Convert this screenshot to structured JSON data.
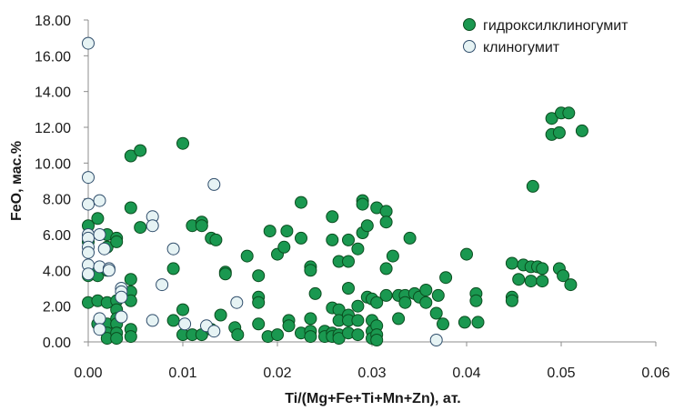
{
  "chart_data": {
    "type": "scatter",
    "xlabel": "Ti/(Mg+Fe+Ti+Mn+Zn), ат.",
    "ylabel": "FeO, мас.%",
    "xlim": [
      0,
      0.06
    ],
    "ylim": [
      0,
      18
    ],
    "x_ticks": [
      "0.00",
      "0.01",
      "0.02",
      "0.03",
      "0.04",
      "0.05",
      "0.06"
    ],
    "y_ticks": [
      "0.00",
      "2.00",
      "4.00",
      "6.00",
      "8.00",
      "10.00",
      "12.00",
      "14.00",
      "16.00",
      "18.00"
    ],
    "grid": false,
    "legend_position": "top-right",
    "series": [
      {
        "name": "гидроксилклиногумит",
        "color": "#1a9850",
        "points": [
          [
            0.0,
            6.5
          ],
          [
            0.0,
            5.6
          ],
          [
            0.0,
            3.7
          ],
          [
            0.0,
            2.2
          ],
          [
            0.001,
            6.9
          ],
          [
            0.001,
            4.0
          ],
          [
            0.001,
            3.7
          ],
          [
            0.001,
            2.3
          ],
          [
            0.001,
            1.0
          ],
          [
            0.002,
            6.0
          ],
          [
            0.002,
            5.3
          ],
          [
            0.002,
            4.0
          ],
          [
            0.002,
            2.2
          ],
          [
            0.002,
            1.0
          ],
          [
            0.002,
            0.5
          ],
          [
            0.002,
            0.2
          ],
          [
            0.003,
            5.8
          ],
          [
            0.003,
            5.6
          ],
          [
            0.003,
            2.3
          ],
          [
            0.003,
            1.8
          ],
          [
            0.003,
            1.3
          ],
          [
            0.003,
            1.0
          ],
          [
            0.003,
            0.5
          ],
          [
            0.003,
            0.2
          ],
          [
            0.0045,
            10.4
          ],
          [
            0.0045,
            7.5
          ],
          [
            0.0045,
            3.5
          ],
          [
            0.0045,
            2.8
          ],
          [
            0.0045,
            2.3
          ],
          [
            0.0045,
            0.7
          ],
          [
            0.0045,
            0.3
          ],
          [
            0.0055,
            10.7
          ],
          [
            0.0055,
            6.4
          ],
          [
            0.009,
            4.1
          ],
          [
            0.009,
            1.2
          ],
          [
            0.01,
            11.1
          ],
          [
            0.01,
            1.8
          ],
          [
            0.01,
            0.4
          ],
          [
            0.011,
            6.5
          ],
          [
            0.011,
            0.4
          ],
          [
            0.012,
            6.7
          ],
          [
            0.012,
            6.5
          ],
          [
            0.012,
            0.4
          ],
          [
            0.013,
            5.8
          ],
          [
            0.013,
            0.7
          ],
          [
            0.0135,
            5.7
          ],
          [
            0.014,
            1.5
          ],
          [
            0.0145,
            3.9
          ],
          [
            0.0145,
            3.8
          ],
          [
            0.0155,
            0.8
          ],
          [
            0.0158,
            0.4
          ],
          [
            0.0168,
            4.8
          ],
          [
            0.018,
            3.7
          ],
          [
            0.018,
            2.5
          ],
          [
            0.018,
            2.2
          ],
          [
            0.018,
            1.0
          ],
          [
            0.019,
            0.3
          ],
          [
            0.0192,
            6.2
          ],
          [
            0.02,
            4.9
          ],
          [
            0.02,
            0.4
          ],
          [
            0.0207,
            5.3
          ],
          [
            0.021,
            6.2
          ],
          [
            0.0212,
            1.2
          ],
          [
            0.0212,
            0.9
          ],
          [
            0.0225,
            7.8
          ],
          [
            0.0225,
            5.8
          ],
          [
            0.0225,
            0.5
          ],
          [
            0.0235,
            4.2
          ],
          [
            0.0235,
            4.0
          ],
          [
            0.0235,
            1.3
          ],
          [
            0.0235,
            0.6
          ],
          [
            0.0235,
            0.3
          ],
          [
            0.024,
            2.7
          ],
          [
            0.025,
            0.6
          ],
          [
            0.025,
            0.3
          ],
          [
            0.0258,
            7.0
          ],
          [
            0.0258,
            5.7
          ],
          [
            0.0258,
            1.9
          ],
          [
            0.0258,
            0.5
          ],
          [
            0.0258,
            0.3
          ],
          [
            0.0265,
            4.5
          ],
          [
            0.0265,
            1.8
          ],
          [
            0.0265,
            1.2
          ],
          [
            0.0265,
            0.4
          ],
          [
            0.0265,
            0.2
          ],
          [
            0.0275,
            5.7
          ],
          [
            0.0275,
            4.5
          ],
          [
            0.0275,
            3.0
          ],
          [
            0.0275,
            1.5
          ],
          [
            0.0275,
            1.2
          ],
          [
            0.0275,
            0.5
          ],
          [
            0.0285,
            5.2
          ],
          [
            0.0285,
            2.0
          ],
          [
            0.0285,
            1.2
          ],
          [
            0.0285,
            0.4
          ],
          [
            0.029,
            7.9
          ],
          [
            0.029,
            7.7
          ],
          [
            0.029,
            6.1
          ],
          [
            0.0295,
            6.5
          ],
          [
            0.0295,
            2.5
          ],
          [
            0.03,
            2.4
          ],
          [
            0.03,
            1.2
          ],
          [
            0.03,
            0.6
          ],
          [
            0.03,
            0.2
          ],
          [
            0.0305,
            7.5
          ],
          [
            0.0305,
            2.2
          ],
          [
            0.0305,
            0.9
          ],
          [
            0.0305,
            0.4
          ],
          [
            0.0305,
            0.1
          ],
          [
            0.0315,
            7.3
          ],
          [
            0.0315,
            6.7
          ],
          [
            0.0315,
            4.1
          ],
          [
            0.0315,
            2.6
          ],
          [
            0.0322,
            4.8
          ],
          [
            0.0328,
            2.6
          ],
          [
            0.0328,
            1.3
          ],
          [
            0.0335,
            2.6
          ],
          [
            0.0335,
            2.2
          ],
          [
            0.034,
            5.8
          ],
          [
            0.0345,
            2.7
          ],
          [
            0.035,
            2.5
          ],
          [
            0.0357,
            2.9
          ],
          [
            0.0357,
            2.2
          ],
          [
            0.0368,
            1.6
          ],
          [
            0.037,
            2.6
          ],
          [
            0.0375,
            1.0
          ],
          [
            0.0378,
            3.6
          ],
          [
            0.0398,
            1.1
          ],
          [
            0.04,
            4.9
          ],
          [
            0.041,
            2.7
          ],
          [
            0.041,
            2.3
          ],
          [
            0.0412,
            1.1
          ],
          [
            0.0448,
            4.4
          ],
          [
            0.0448,
            2.5
          ],
          [
            0.0448,
            2.3
          ],
          [
            0.0455,
            3.5
          ],
          [
            0.046,
            4.3
          ],
          [
            0.0468,
            4.2
          ],
          [
            0.0468,
            3.4
          ],
          [
            0.047,
            8.7
          ],
          [
            0.0475,
            4.2
          ],
          [
            0.048,
            4.1
          ],
          [
            0.048,
            3.4
          ],
          [
            0.049,
            12.5
          ],
          [
            0.049,
            11.6
          ],
          [
            0.0498,
            11.7
          ],
          [
            0.0498,
            4.1
          ],
          [
            0.05,
            12.8
          ],
          [
            0.0502,
            3.7
          ],
          [
            0.0508,
            12.8
          ],
          [
            0.051,
            3.2
          ],
          [
            0.0522,
            11.8
          ]
        ]
      },
      {
        "name": "клиногумит",
        "color": "#e6f3f4",
        "points": [
          [
            0.0,
            16.7
          ],
          [
            0.0,
            9.2
          ],
          [
            0.0,
            7.7
          ],
          [
            0.0,
            6.0
          ],
          [
            0.0,
            5.8
          ],
          [
            0.0,
            5.3
          ],
          [
            0.0,
            5.0
          ],
          [
            0.0,
            4.3
          ],
          [
            0.0,
            3.8
          ],
          [
            0.0012,
            7.9
          ],
          [
            0.0012,
            6.0
          ],
          [
            0.0012,
            4.2
          ],
          [
            0.0012,
            1.3
          ],
          [
            0.0012,
            0.7
          ],
          [
            0.0017,
            5.2
          ],
          [
            0.0022,
            4.1
          ],
          [
            0.0022,
            4.0
          ],
          [
            0.0035,
            3.0
          ],
          [
            0.0035,
            2.8
          ],
          [
            0.0035,
            2.5
          ],
          [
            0.0035,
            1.4
          ],
          [
            0.0068,
            7.0
          ],
          [
            0.0068,
            6.5
          ],
          [
            0.0068,
            1.2
          ],
          [
            0.0078,
            3.2
          ],
          [
            0.009,
            5.2
          ],
          [
            0.0102,
            1.0
          ],
          [
            0.0125,
            0.9
          ],
          [
            0.0133,
            8.8
          ],
          [
            0.0133,
            0.6
          ],
          [
            0.0157,
            2.2
          ],
          [
            0.0368,
            0.1
          ]
        ]
      }
    ]
  }
}
